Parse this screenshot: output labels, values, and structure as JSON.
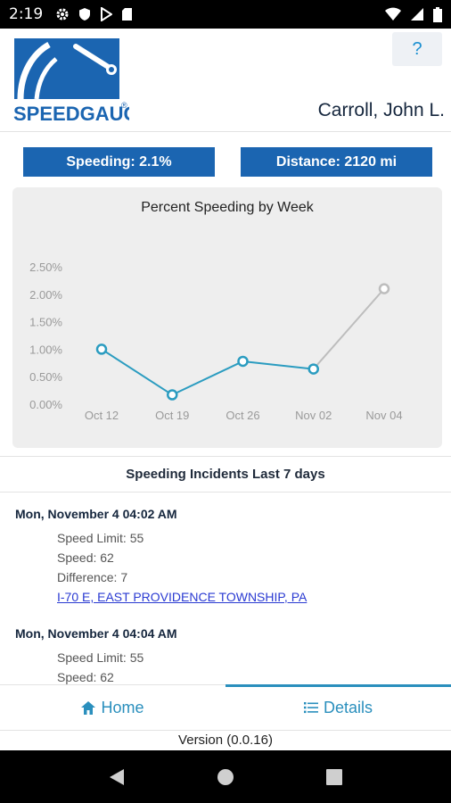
{
  "status_bar": {
    "time": "2:19",
    "left_icons": [
      "gear-icon",
      "shield-icon",
      "play-store-icon",
      "sd-card-icon"
    ],
    "right_icons": [
      "wifi-icon",
      "signal-icon",
      "battery-icon"
    ]
  },
  "header": {
    "logo_text": "SPEEDGAUGE",
    "logo_mark": "®",
    "help_label": "?",
    "driver_name": "Carroll, John L."
  },
  "stats": {
    "speeding_label": "Speeding: 2.1%",
    "distance_label": "Distance: 2120 mi"
  },
  "chart_data": {
    "type": "line",
    "title": "Percent Speeding by Week",
    "categories": [
      "Oct 12",
      "Oct 19",
      "Oct 26",
      "Nov 02",
      "Nov 04"
    ],
    "yticks": [
      "2.50%",
      "2.00%",
      "1.50%",
      "1.00%",
      "0.50%",
      "0.00%"
    ],
    "ylim": [
      0,
      2.5
    ],
    "series": [
      {
        "values": [
          1.0,
          0.17,
          0.78,
          0.64,
          2.1
        ]
      }
    ],
    "last_point_pending": true,
    "colors": {
      "line": "#2b9cc0",
      "pending": "#bdbdbd"
    },
    "grid": false
  },
  "incidents": {
    "title": "Speeding Incidents Last 7 days",
    "items": [
      {
        "when": "Mon, November 4 04:02 AM",
        "speed_limit": "Speed Limit: 55",
        "speed": "Speed: 62",
        "difference": "Difference: 7",
        "location": "I-70 E, EAST PROVIDENCE TOWNSHIP, PA"
      },
      {
        "when": "Mon, November 4 04:04 AM",
        "speed_limit": "Speed Limit: 55",
        "speed": "Speed: 62"
      }
    ]
  },
  "tabs": {
    "home_label": "Home",
    "details_label": "Details"
  },
  "footer": {
    "version": "Version (0.0.16)"
  },
  "nav": {
    "icons": [
      "back-icon",
      "home-circle-icon",
      "recents-icon"
    ]
  }
}
